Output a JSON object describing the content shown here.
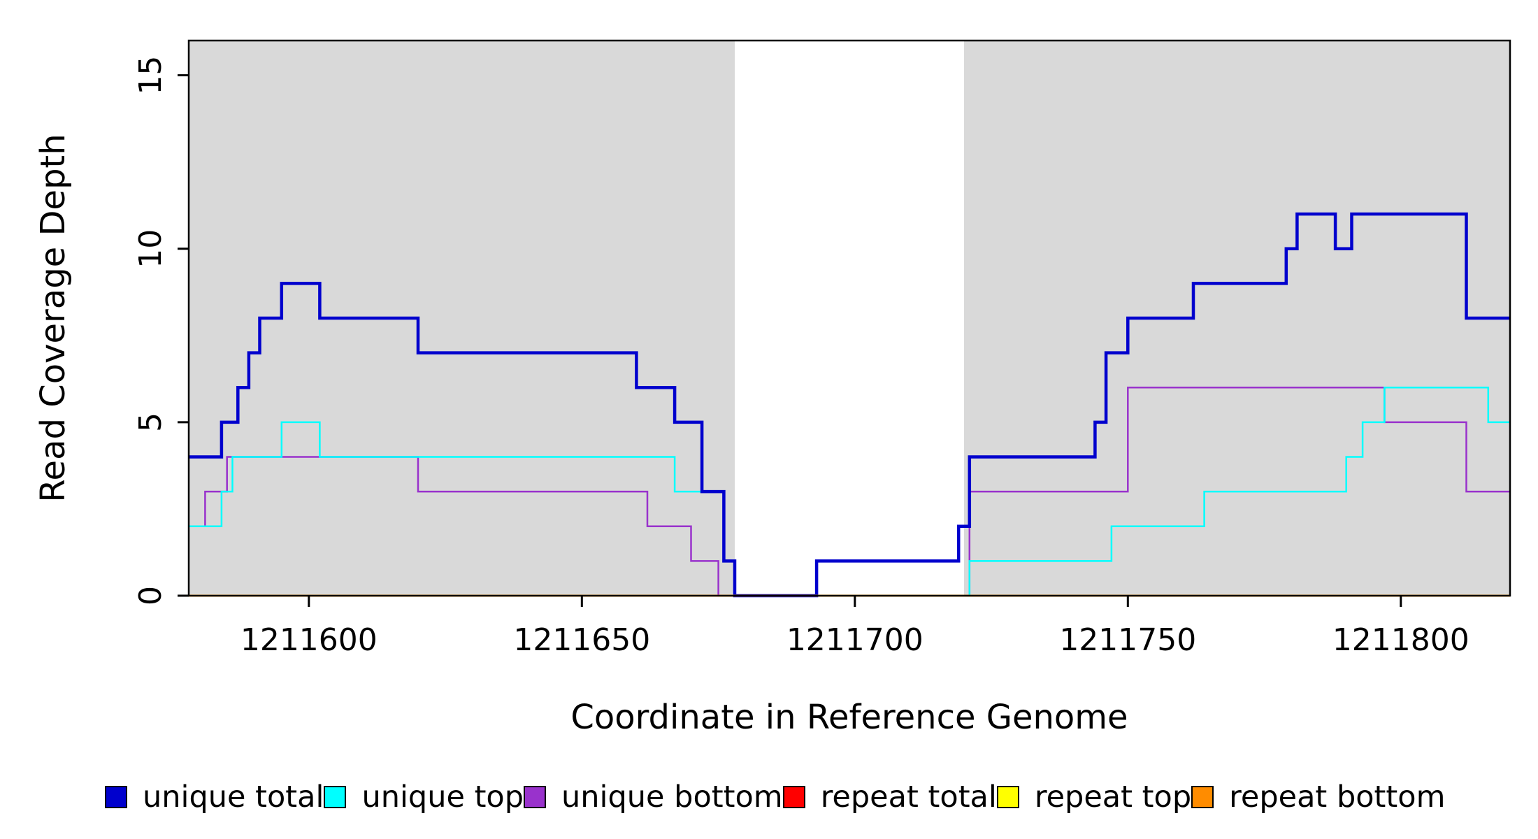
{
  "chart_data": {
    "type": "line",
    "subtype": "step",
    "title": "",
    "xlabel": "Coordinate in Reference Genome",
    "ylabel": "Read Coverage Depth",
    "xlim": [
      1211578,
      1211820
    ],
    "ylim": [
      0,
      16
    ],
    "xticks": [
      1211600,
      1211650,
      1211700,
      1211750,
      1211800
    ],
    "yticks": [
      0,
      5,
      10,
      15
    ],
    "grid": false,
    "legend_position": "bottom",
    "plot_background": "#ffffff",
    "background_regions": [
      {
        "x0": 1211578,
        "x1": 1211678,
        "color": "#d9d9d9"
      },
      {
        "x0": 1211720,
        "x1": 1211820,
        "color": "#d9d9d9"
      }
    ],
    "series": [
      {
        "name": "unique total",
        "color": "#0000cd",
        "width": 4.5,
        "steps": [
          [
            1211578,
            4
          ],
          [
            1211584,
            5
          ],
          [
            1211587,
            6
          ],
          [
            1211589,
            7
          ],
          [
            1211591,
            8
          ],
          [
            1211595,
            9
          ],
          [
            1211602,
            8
          ],
          [
            1211620,
            7
          ],
          [
            1211660,
            6
          ],
          [
            1211667,
            5
          ],
          [
            1211672,
            3
          ],
          [
            1211676,
            1
          ],
          [
            1211678,
            0
          ],
          [
            1211693,
            1
          ],
          [
            1211719,
            2
          ],
          [
            1211721,
            4
          ],
          [
            1211744,
            5
          ],
          [
            1211746,
            7
          ],
          [
            1211750,
            8
          ],
          [
            1211762,
            9
          ],
          [
            1211779,
            10
          ],
          [
            1211781,
            11
          ],
          [
            1211788,
            10
          ],
          [
            1211791,
            11
          ],
          [
            1211812,
            8
          ]
        ]
      },
      {
        "name": "unique top",
        "color": "#00ffff",
        "width": 2.5,
        "steps": [
          [
            1211578,
            2
          ],
          [
            1211584,
            3
          ],
          [
            1211586,
            4
          ],
          [
            1211595,
            5
          ],
          [
            1211602,
            4
          ],
          [
            1211667,
            3
          ],
          [
            1211676,
            1
          ],
          [
            1211678,
            0
          ],
          [
            1211721,
            1
          ],
          [
            1211747,
            2
          ],
          [
            1211764,
            3
          ],
          [
            1211790,
            4
          ],
          [
            1211793,
            5
          ],
          [
            1211797,
            6
          ],
          [
            1211816,
            5
          ]
        ]
      },
      {
        "name": "unique bottom",
        "color": "#9932cc",
        "width": 2.5,
        "steps": [
          [
            1211578,
            2
          ],
          [
            1211581,
            3
          ],
          [
            1211585,
            4
          ],
          [
            1211620,
            3
          ],
          [
            1211662,
            2
          ],
          [
            1211670,
            1
          ],
          [
            1211675,
            0
          ],
          [
            1211721,
            3
          ],
          [
            1211750,
            6
          ],
          [
            1211797,
            5
          ],
          [
            1211812,
            3
          ]
        ]
      },
      {
        "name": "repeat total",
        "color": "#ff0000",
        "width": 2.5,
        "steps": [
          [
            1211578,
            0
          ]
        ]
      },
      {
        "name": "repeat top",
        "color": "#ffff00",
        "width": 2.5,
        "steps": [
          [
            1211578,
            0
          ]
        ]
      },
      {
        "name": "repeat bottom",
        "color": "#ff8c00",
        "width": 2.5,
        "steps": [
          [
            1211578,
            0
          ]
        ]
      }
    ]
  }
}
